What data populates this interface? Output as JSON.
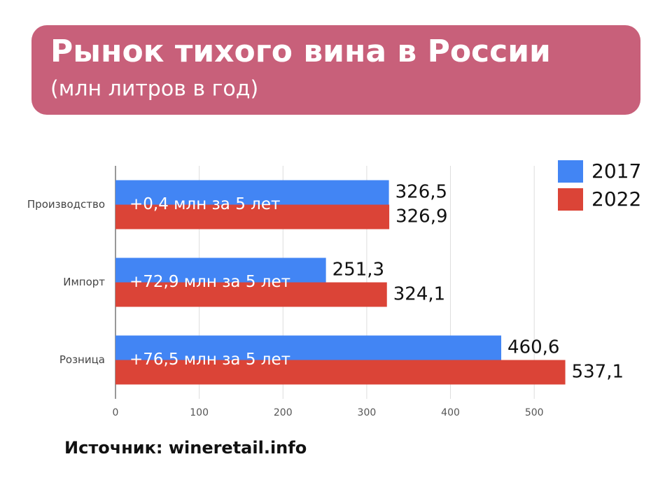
{
  "chart_data": {
    "type": "bar",
    "orientation": "horizontal",
    "title": "Рынок тихого вина в России",
    "subtitle": "(млн литров в год)",
    "categories": [
      "Производство",
      "Импорт",
      "Розница"
    ],
    "series": [
      {
        "name": "2017",
        "color": "#4285f4",
        "values": [
          326.5,
          251.3,
          460.6
        ],
        "value_labels": [
          "326,5",
          "251,3",
          "460,6"
        ]
      },
      {
        "name": "2022",
        "color": "#db4437",
        "values": [
          326.9,
          324.1,
          537.1
        ],
        "value_labels": [
          "326,9",
          "324,1",
          "537,1"
        ]
      }
    ],
    "annotations": [
      "+0,4 млн за 5 лет",
      "+72,9 млн за 5 лет",
      "+76,5 млн за 5 лет"
    ],
    "xlim": [
      0,
      550
    ],
    "xticks": [
      0,
      100,
      200,
      300,
      400,
      500
    ],
    "grid": true,
    "legend": "top-right",
    "source": "Источник: wineretail.info"
  }
}
